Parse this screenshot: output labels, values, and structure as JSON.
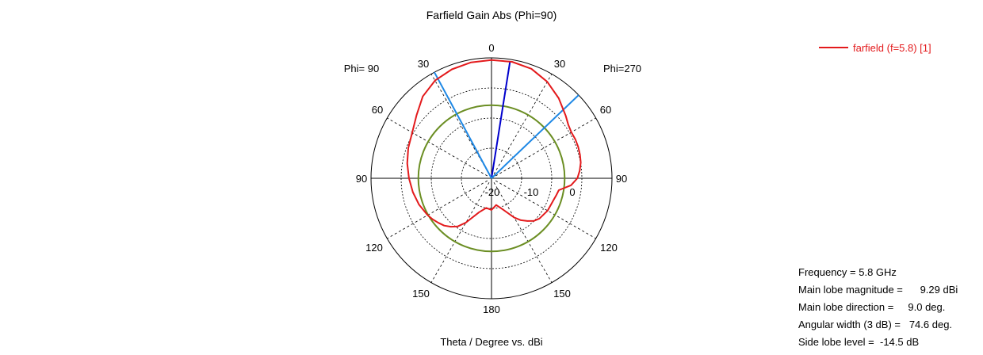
{
  "chart_data": {
    "type": "polar",
    "title": "Farfield Gain Abs (Phi=90)",
    "xlabel": "Theta / Degree vs. dBi",
    "plane_labels": {
      "left": "Phi= 90",
      "right": "Phi=270"
    },
    "angle_tick_labels": {
      "top": "0",
      "upper_left": "30",
      "upper_right": "30",
      "mid_upper_left": "60",
      "mid_upper_right": "60",
      "left": "90",
      "right": "90",
      "lower_left": "120",
      "lower_right": "120",
      "mid_lower_left": "150",
      "mid_lower_right": "150",
      "bottom": "180"
    },
    "radial_range_dbi": [
      -30,
      10
    ],
    "radial_ticks": [
      {
        "value": -20,
        "label": "-20"
      },
      {
        "value": -10,
        "label": "-10"
      },
      {
        "value": 0,
        "label": "0"
      }
    ],
    "series": [
      {
        "name": "farfield (f=5.8) [1]",
        "color": "#e31a1c",
        "theta_deg": [
          -180,
          -170,
          -160,
          -150,
          -145,
          -140,
          -135,
          -130,
          -125,
          -120,
          -110,
          -100,
          -90,
          -80,
          -70,
          -60,
          -50,
          -40,
          -30,
          -20,
          -10,
          0,
          10,
          20,
          30,
          40,
          50,
          55,
          60,
          65,
          70,
          75,
          80,
          85,
          90,
          95,
          100,
          105,
          110,
          120,
          130,
          135,
          140,
          145,
          150,
          160,
          170,
          180
        ],
        "gain_dbi": [
          -19.5,
          -20,
          -18,
          -13,
          -10.5,
          -9,
          -7.8,
          -7,
          -6.2,
          -5.5,
          -4.4,
          -3.5,
          -2.6,
          -1.6,
          -0.6,
          0.4,
          2.5,
          5.5,
          7.5,
          8.5,
          9.1,
          9.25,
          9.29,
          8.7,
          7,
          4.7,
          2.2,
          1.1,
          0.6,
          0.7,
          0.6,
          0.4,
          0.1,
          -0.6,
          -1.5,
          -3.5,
          -7.3,
          -7.8,
          -8.2,
          -8.5,
          -9.2,
          -10,
          -11.5,
          -13,
          -15,
          -19,
          -21,
          -19.5
        ]
      }
    ],
    "reference_circle": {
      "value_dbi": -5.71,
      "color": "#6b8e23"
    },
    "markers": [
      {
        "kind": "main-lobe-direction",
        "theta_deg": 9.0,
        "color": "#0000cc"
      },
      {
        "kind": "3db-beamwidth-edge",
        "theta_deg": -28.3,
        "color": "#1e88e5"
      },
      {
        "kind": "3db-beamwidth-edge",
        "theta_deg": 46.3,
        "color": "#1e88e5"
      }
    ]
  },
  "legend": {
    "label": "farfield (f=5.8) [1]",
    "color": "#e31a1c"
  },
  "info": [
    "Frequency = 5.8 GHz",
    "Main lobe magnitude =      9.29 dBi",
    "Main lobe direction =     9.0 deg.",
    "Angular width (3 dB) =   74.6 deg.",
    "Side lobe level =  -14.5 dB"
  ]
}
